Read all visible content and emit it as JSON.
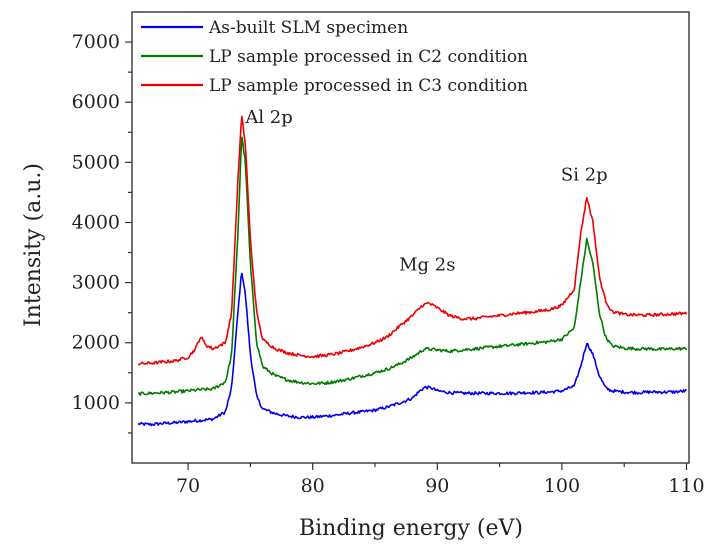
{
  "chart_data": {
    "type": "line",
    "title": "",
    "xlabel": "Binding energy (eV)",
    "ylabel": "Intensity (a.u.)",
    "xlim": [
      65.5,
      110.2
    ],
    "ylim": [
      0,
      7500
    ],
    "x_ticks": [
      70,
      80,
      90,
      100,
      110
    ],
    "y_ticks": [
      1000,
      2000,
      3000,
      4000,
      5000,
      6000,
      7000
    ],
    "grid": false,
    "legend_position": "top-left",
    "series": [
      {
        "name": "As-built SLM specimen",
        "color": "#0000ee",
        "points": [
          [
            66,
            650
          ],
          [
            67,
            640
          ],
          [
            68,
            660
          ],
          [
            69,
            670
          ],
          [
            70,
            690
          ],
          [
            71,
            710
          ],
          [
            72,
            730
          ],
          [
            73,
            850
          ],
          [
            73.5,
            1250
          ],
          [
            74,
            2500
          ],
          [
            74.3,
            3200
          ],
          [
            74.6,
            2800
          ],
          [
            75,
            1800
          ],
          [
            75.5,
            1100
          ],
          [
            76,
            900
          ],
          [
            77,
            820
          ],
          [
            78,
            780
          ],
          [
            79,
            760
          ],
          [
            80,
            760
          ],
          [
            81,
            780
          ],
          [
            82,
            800
          ],
          [
            83,
            830
          ],
          [
            84,
            850
          ],
          [
            85,
            880
          ],
          [
            86,
            930
          ],
          [
            87,
            1000
          ],
          [
            88,
            1080
          ],
          [
            88.6,
            1200
          ],
          [
            89,
            1260
          ],
          [
            89.5,
            1250
          ],
          [
            90,
            1200
          ],
          [
            91,
            1170
          ],
          [
            92,
            1160
          ],
          [
            93,
            1160
          ],
          [
            94,
            1160
          ],
          [
            95,
            1160
          ],
          [
            96,
            1160
          ],
          [
            97,
            1170
          ],
          [
            98,
            1170
          ],
          [
            99,
            1180
          ],
          [
            100,
            1200
          ],
          [
            101,
            1280
          ],
          [
            101.5,
            1600
          ],
          [
            102,
            2000
          ],
          [
            102.5,
            1800
          ],
          [
            103,
            1450
          ],
          [
            103.5,
            1250
          ],
          [
            104,
            1200
          ],
          [
            105,
            1180
          ],
          [
            106,
            1170
          ],
          [
            107,
            1180
          ],
          [
            108,
            1180
          ],
          [
            109,
            1180
          ],
          [
            110,
            1200
          ]
        ]
      },
      {
        "name": "LP sample processed in C2 condition",
        "color": "#007a00",
        "points": [
          [
            66,
            1150
          ],
          [
            67,
            1160
          ],
          [
            68,
            1170
          ],
          [
            69,
            1180
          ],
          [
            70,
            1200
          ],
          [
            71,
            1220
          ],
          [
            72,
            1230
          ],
          [
            73,
            1350
          ],
          [
            73.5,
            1800
          ],
          [
            74,
            3800
          ],
          [
            74.3,
            5450
          ],
          [
            74.6,
            5000
          ],
          [
            75,
            3300
          ],
          [
            75.5,
            2000
          ],
          [
            76,
            1600
          ],
          [
            77,
            1450
          ],
          [
            78,
            1380
          ],
          [
            79,
            1340
          ],
          [
            80,
            1320
          ],
          [
            81,
            1330
          ],
          [
            82,
            1360
          ],
          [
            83,
            1400
          ],
          [
            84,
            1450
          ],
          [
            85,
            1500
          ],
          [
            86,
            1560
          ],
          [
            87,
            1650
          ],
          [
            88,
            1760
          ],
          [
            89,
            1900
          ],
          [
            90,
            1880
          ],
          [
            91,
            1860
          ],
          [
            92,
            1880
          ],
          [
            93,
            1900
          ],
          [
            94,
            1920
          ],
          [
            95,
            1940
          ],
          [
            96,
            1960
          ],
          [
            97,
            1980
          ],
          [
            98,
            2000
          ],
          [
            99,
            2020
          ],
          [
            100,
            2060
          ],
          [
            101,
            2250
          ],
          [
            101.5,
            3000
          ],
          [
            102,
            3720
          ],
          [
            102.5,
            3300
          ],
          [
            103,
            2500
          ],
          [
            103.5,
            2100
          ],
          [
            104,
            1950
          ],
          [
            105,
            1910
          ],
          [
            106,
            1900
          ],
          [
            107,
            1900
          ],
          [
            108,
            1890
          ],
          [
            109,
            1900
          ],
          [
            110,
            1900
          ]
        ]
      },
      {
        "name": "LP sample processed in C3 condition",
        "color": "#ee0000",
        "points": [
          [
            66,
            1650
          ],
          [
            67,
            1660
          ],
          [
            68,
            1680
          ],
          [
            69,
            1700
          ],
          [
            70,
            1760
          ],
          [
            70.6,
            1900
          ],
          [
            71,
            2100
          ],
          [
            71.5,
            1950
          ],
          [
            72,
            1900
          ],
          [
            73,
            2000
          ],
          [
            73.5,
            2500
          ],
          [
            74,
            4700
          ],
          [
            74.3,
            5780
          ],
          [
            74.6,
            5300
          ],
          [
            75,
            3700
          ],
          [
            75.5,
            2500
          ],
          [
            76,
            2050
          ],
          [
            77,
            1900
          ],
          [
            78,
            1830
          ],
          [
            79,
            1790
          ],
          [
            80,
            1770
          ],
          [
            81,
            1790
          ],
          [
            82,
            1820
          ],
          [
            83,
            1870
          ],
          [
            84,
            1930
          ],
          [
            85,
            2000
          ],
          [
            86,
            2100
          ],
          [
            87,
            2280
          ],
          [
            88,
            2450
          ],
          [
            88.8,
            2620
          ],
          [
            89.3,
            2660
          ],
          [
            90,
            2580
          ],
          [
            91,
            2450
          ],
          [
            92,
            2400
          ],
          [
            93,
            2400
          ],
          [
            94,
            2430
          ],
          [
            95,
            2450
          ],
          [
            96,
            2480
          ],
          [
            97,
            2500
          ],
          [
            98,
            2520
          ],
          [
            99,
            2550
          ],
          [
            100,
            2620
          ],
          [
            101,
            2900
          ],
          [
            101.5,
            3800
          ],
          [
            102,
            4420
          ],
          [
            102.5,
            4000
          ],
          [
            103,
            3100
          ],
          [
            103.5,
            2700
          ],
          [
            104,
            2520
          ],
          [
            105,
            2470
          ],
          [
            106,
            2460
          ],
          [
            107,
            2460
          ],
          [
            108,
            2470
          ],
          [
            109,
            2480
          ],
          [
            110,
            2490
          ]
        ]
      }
    ],
    "annotations": [
      {
        "text": "Al 2p",
        "x": 76.5,
        "y": 5650
      },
      {
        "text": "Mg 2s",
        "x": 89.2,
        "y": 3200
      },
      {
        "text": "Si 2p",
        "x": 101.8,
        "y": 4700
      }
    ]
  }
}
